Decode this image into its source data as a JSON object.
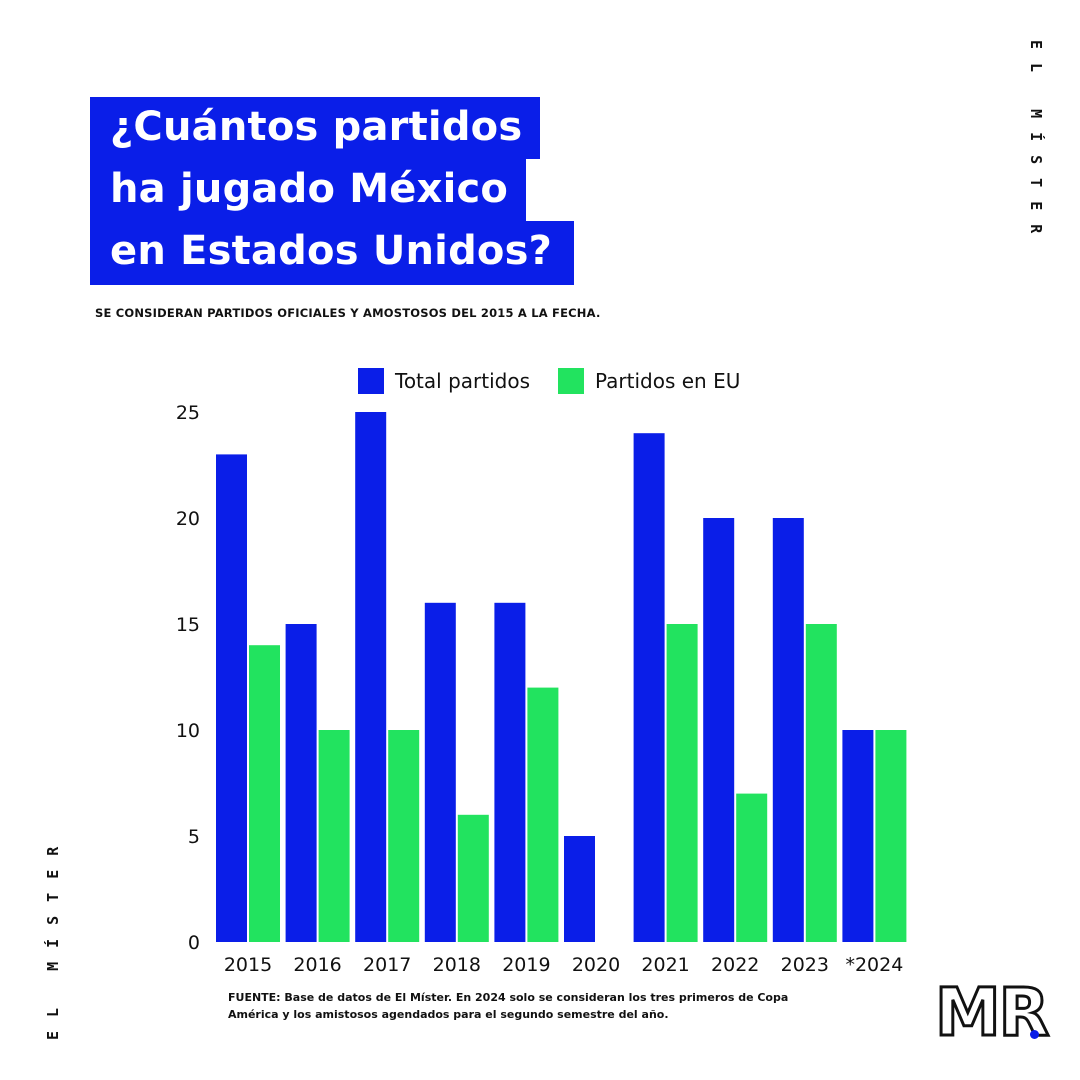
{
  "title_lines": [
    "¿Cuántos partidos",
    "ha jugado México",
    "en Estados Unidos?"
  ],
  "subtitle": "SE CONSIDERAN PARTIDOS OFICIALES Y AMOSTOSOS DEL 2015 A LA FECHA.",
  "brand_text": "EL MÍSTER",
  "logo_text": "MR",
  "footer_text": "FUENTE: Base de datos de El Míster. En 2024 solo se consideran los tres primeros de Copa América y los amistosos agendados para el segundo semestre del año.",
  "colors": {
    "title_bg": "#0a1ee8",
    "total": "#0a1ee8",
    "eu": "#22e35f",
    "text": "#111111"
  },
  "chart_data": {
    "type": "bar",
    "categories": [
      "2015",
      "2016",
      "2017",
      "2018",
      "2019",
      "2020",
      "2021",
      "2022",
      "2023",
      "*2024"
    ],
    "series": [
      {
        "name": "Total partidos",
        "color": "#0a1ee8",
        "values": [
          23,
          15,
          25,
          16,
          16,
          5,
          24,
          20,
          20,
          10
        ]
      },
      {
        "name": "Partidos en EU",
        "color": "#22e35f",
        "values": [
          14,
          10,
          10,
          6,
          12,
          0,
          15,
          7,
          15,
          10
        ]
      }
    ],
    "yticks": [
      0,
      5,
      10,
      15,
      20,
      25
    ],
    "ylim": [
      0,
      25
    ],
    "grid": false,
    "legend": "top"
  }
}
